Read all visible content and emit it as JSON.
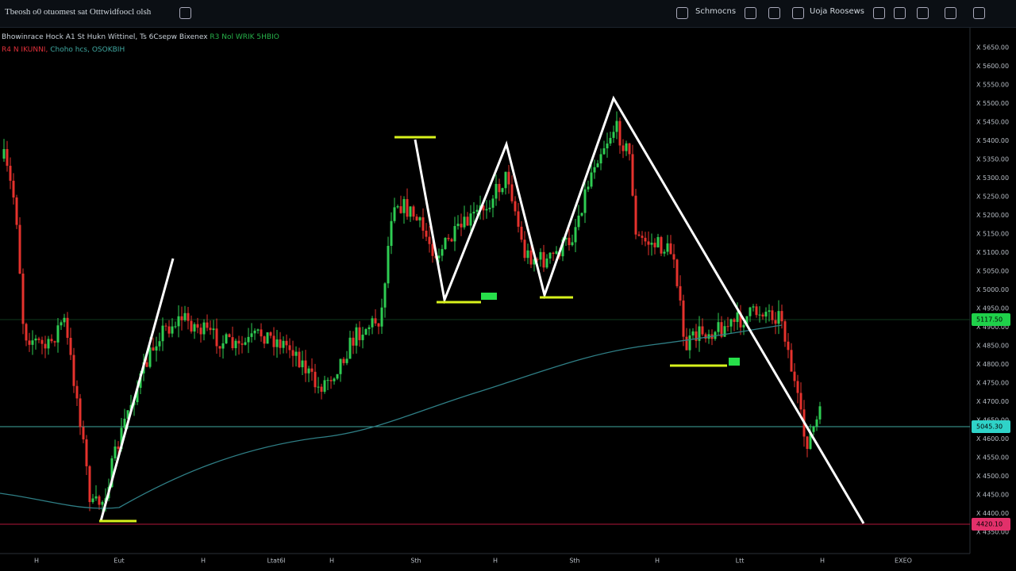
{
  "toolbar": {
    "title": "Tbeosh o0 otuomest sat Otttwidfoocl olsh",
    "buttons": [
      "Schmocns",
      "Uoja Roosews"
    ]
  },
  "legend": {
    "line1": "Bhowinrace Hock A1  St Hukn Wittinel, Ts 6Csepw Bixenex",
    "line1_values": "R3 Nol WRIK 5HBIO",
    "line2_red": "R4 N IKUNNI,",
    "line2_teal": "Choho hcs, OSOKBIH"
  },
  "price_axis": {
    "labels": [
      "X 5650.00",
      "X 5600.00",
      "X 5550.00",
      "X 5500.00",
      "X 5450.00",
      "X 5400.00",
      "X 5350.00",
      "X 5300.00",
      "X 5250.00",
      "X 5200.00",
      "X 5150.00",
      "X 5100.00",
      "X 5050.00",
      "X 5000.00",
      "X 4950.00",
      "X 4900.00",
      "X 4850.00",
      "X 4800.00",
      "X 4750.00",
      "X 4700.00",
      "X 4650.00",
      "X 4600.00",
      "X 4550.00",
      "X 4500.00",
      "X 4450.00",
      "X 4400.00",
      "X 4350.00"
    ],
    "tags": [
      "5117.50",
      "5045.30",
      "4420.10"
    ]
  },
  "time_axis": {
    "labels": [
      "H",
      "Eut",
      "H",
      "Ltat6I",
      "H",
      "Sth",
      "H",
      "Sth",
      "H",
      "Ltt",
      "H",
      "EXEO"
    ]
  }
}
